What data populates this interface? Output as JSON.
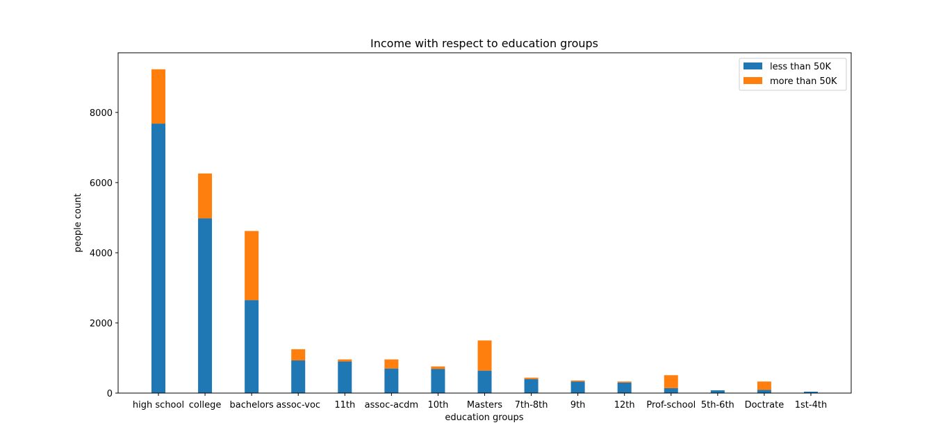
{
  "chart_data": {
    "type": "bar",
    "stacked": true,
    "title": "Income with respect to education groups",
    "xlabel": "education groups",
    "ylabel": "people count",
    "ylim": [
      0,
      9700
    ],
    "yticks": [
      0,
      2000,
      4000,
      6000,
      8000
    ],
    "grid": false,
    "legend_position": "top-right",
    "categories": [
      "high school",
      "college",
      "bachelors",
      "assoc-voc",
      "11th",
      "assoc-acdm",
      "10th",
      "Masters",
      "7th-8th",
      "9th",
      "12th",
      "Prof-school",
      "5th-6th",
      "Doctrate",
      "1st-4th"
    ],
    "series": [
      {
        "name": "less than 50K",
        "color": "#1f77b4",
        "values": [
          7680,
          4980,
          2650,
          930,
          900,
          700,
          690,
          640,
          400,
          330,
          300,
          140,
          80,
          90,
          40
        ]
      },
      {
        "name": "more than 50K",
        "color": "#ff7f0e",
        "values": [
          1550,
          1280,
          1970,
          320,
          60,
          260,
          70,
          860,
          40,
          30,
          30,
          370,
          0,
          240,
          0
        ]
      }
    ]
  }
}
